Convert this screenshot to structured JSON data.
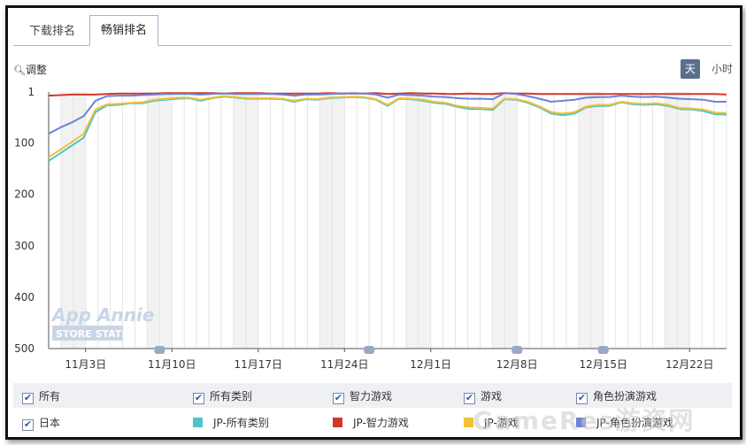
{
  "tabs": [
    {
      "label": "下载排名",
      "active": false
    },
    {
      "label": "畅销排名",
      "active": true
    }
  ],
  "toolbar": {
    "zoom_label": "调整",
    "day_label": "天",
    "hour_label": "小时"
  },
  "watermark": {
    "app_annie_line1": "App Annie",
    "app_annie_line2": "STORE STATS",
    "site": "GameRes游资网"
  },
  "filters": [
    {
      "label": "所有",
      "checked": true
    },
    {
      "label": "所有类别",
      "checked": true
    },
    {
      "label": "智力游戏",
      "checked": true
    },
    {
      "label": "游戏",
      "checked": true
    },
    {
      "label": "角色扮演游戏",
      "checked": true
    },
    {
      "label": "日本",
      "checked": true
    }
  ],
  "chart_data": {
    "type": "line",
    "y_reversed": true,
    "ylim": [
      1,
      500
    ],
    "y_ticks": [
      "1",
      "100",
      "200",
      "300",
      "400",
      "500"
    ],
    "x_ticks": [
      "11月3日",
      "11月10日",
      "11月17日",
      "11月24日",
      "12月1日",
      "12月8日",
      "12月15日",
      "12月22日"
    ],
    "x_range_days": [
      0,
      55
    ],
    "x_tick_days": [
      3,
      10,
      17,
      24,
      31,
      38,
      45,
      52
    ],
    "series": [
      {
        "name": "JP-所有类别",
        "color": "#4fc3c8",
        "values": [
          135,
          120,
          105,
          90,
          40,
          27,
          26,
          23,
          23,
          18,
          16,
          14,
          13,
          18,
          13,
          10,
          12,
          14,
          14,
          14,
          15,
          20,
          15,
          16,
          13,
          12,
          11,
          12,
          16,
          28,
          14,
          15,
          18,
          22,
          24,
          30,
          34,
          34,
          36,
          15,
          16,
          22,
          31,
          43,
          46,
          43,
          31,
          28,
          28,
          21,
          25,
          26,
          25,
          28,
          34,
          35,
          38,
          44,
          45
        ]
      },
      {
        "name": "JP-智力游戏",
        "color": "#d2372a",
        "values": [
          8,
          7,
          6,
          6,
          6,
          5,
          4,
          4,
          4,
          4,
          3,
          3,
          3,
          3,
          3,
          4,
          3,
          3,
          3,
          4,
          4,
          4,
          4,
          4,
          3,
          4,
          4,
          4,
          3,
          5,
          4,
          3,
          4,
          4,
          5,
          5,
          4,
          5,
          5,
          3,
          4,
          4,
          5,
          5,
          5,
          5,
          5,
          5,
          5,
          5,
          5,
          5,
          5,
          5,
          5,
          5,
          5,
          5,
          6
        ]
      },
      {
        "name": "JP-游戏",
        "color": "#f0c13a",
        "values": [
          128,
          113,
          98,
          82,
          35,
          25,
          24,
          22,
          21,
          16,
          14,
          12,
          12,
          16,
          12,
          9,
          11,
          13,
          13,
          13,
          14,
          18,
          14,
          15,
          12,
          11,
          10,
          11,
          15,
          26,
          13,
          14,
          16,
          20,
          22,
          28,
          31,
          32,
          33,
          14,
          15,
          20,
          29,
          40,
          43,
          40,
          29,
          26,
          26,
          20,
          23,
          24,
          23,
          26,
          32,
          33,
          35,
          41,
          42
        ]
      },
      {
        "name": "JP-角色扮演游戏",
        "color": "#6f82d6",
        "values": [
          82,
          70,
          60,
          48,
          18,
          9,
          8,
          8,
          7,
          6,
          5,
          5,
          5,
          6,
          5,
          4,
          5,
          5,
          5,
          5,
          6,
          8,
          6,
          6,
          5,
          4,
          3,
          4,
          6,
          12,
          6,
          7,
          8,
          10,
          11,
          13,
          14,
          14,
          15,
          3,
          5,
          9,
          14,
          20,
          18,
          16,
          12,
          11,
          11,
          8,
          10,
          11,
          10,
          12,
          14,
          15,
          16,
          20,
          20
        ]
      }
    ]
  }
}
